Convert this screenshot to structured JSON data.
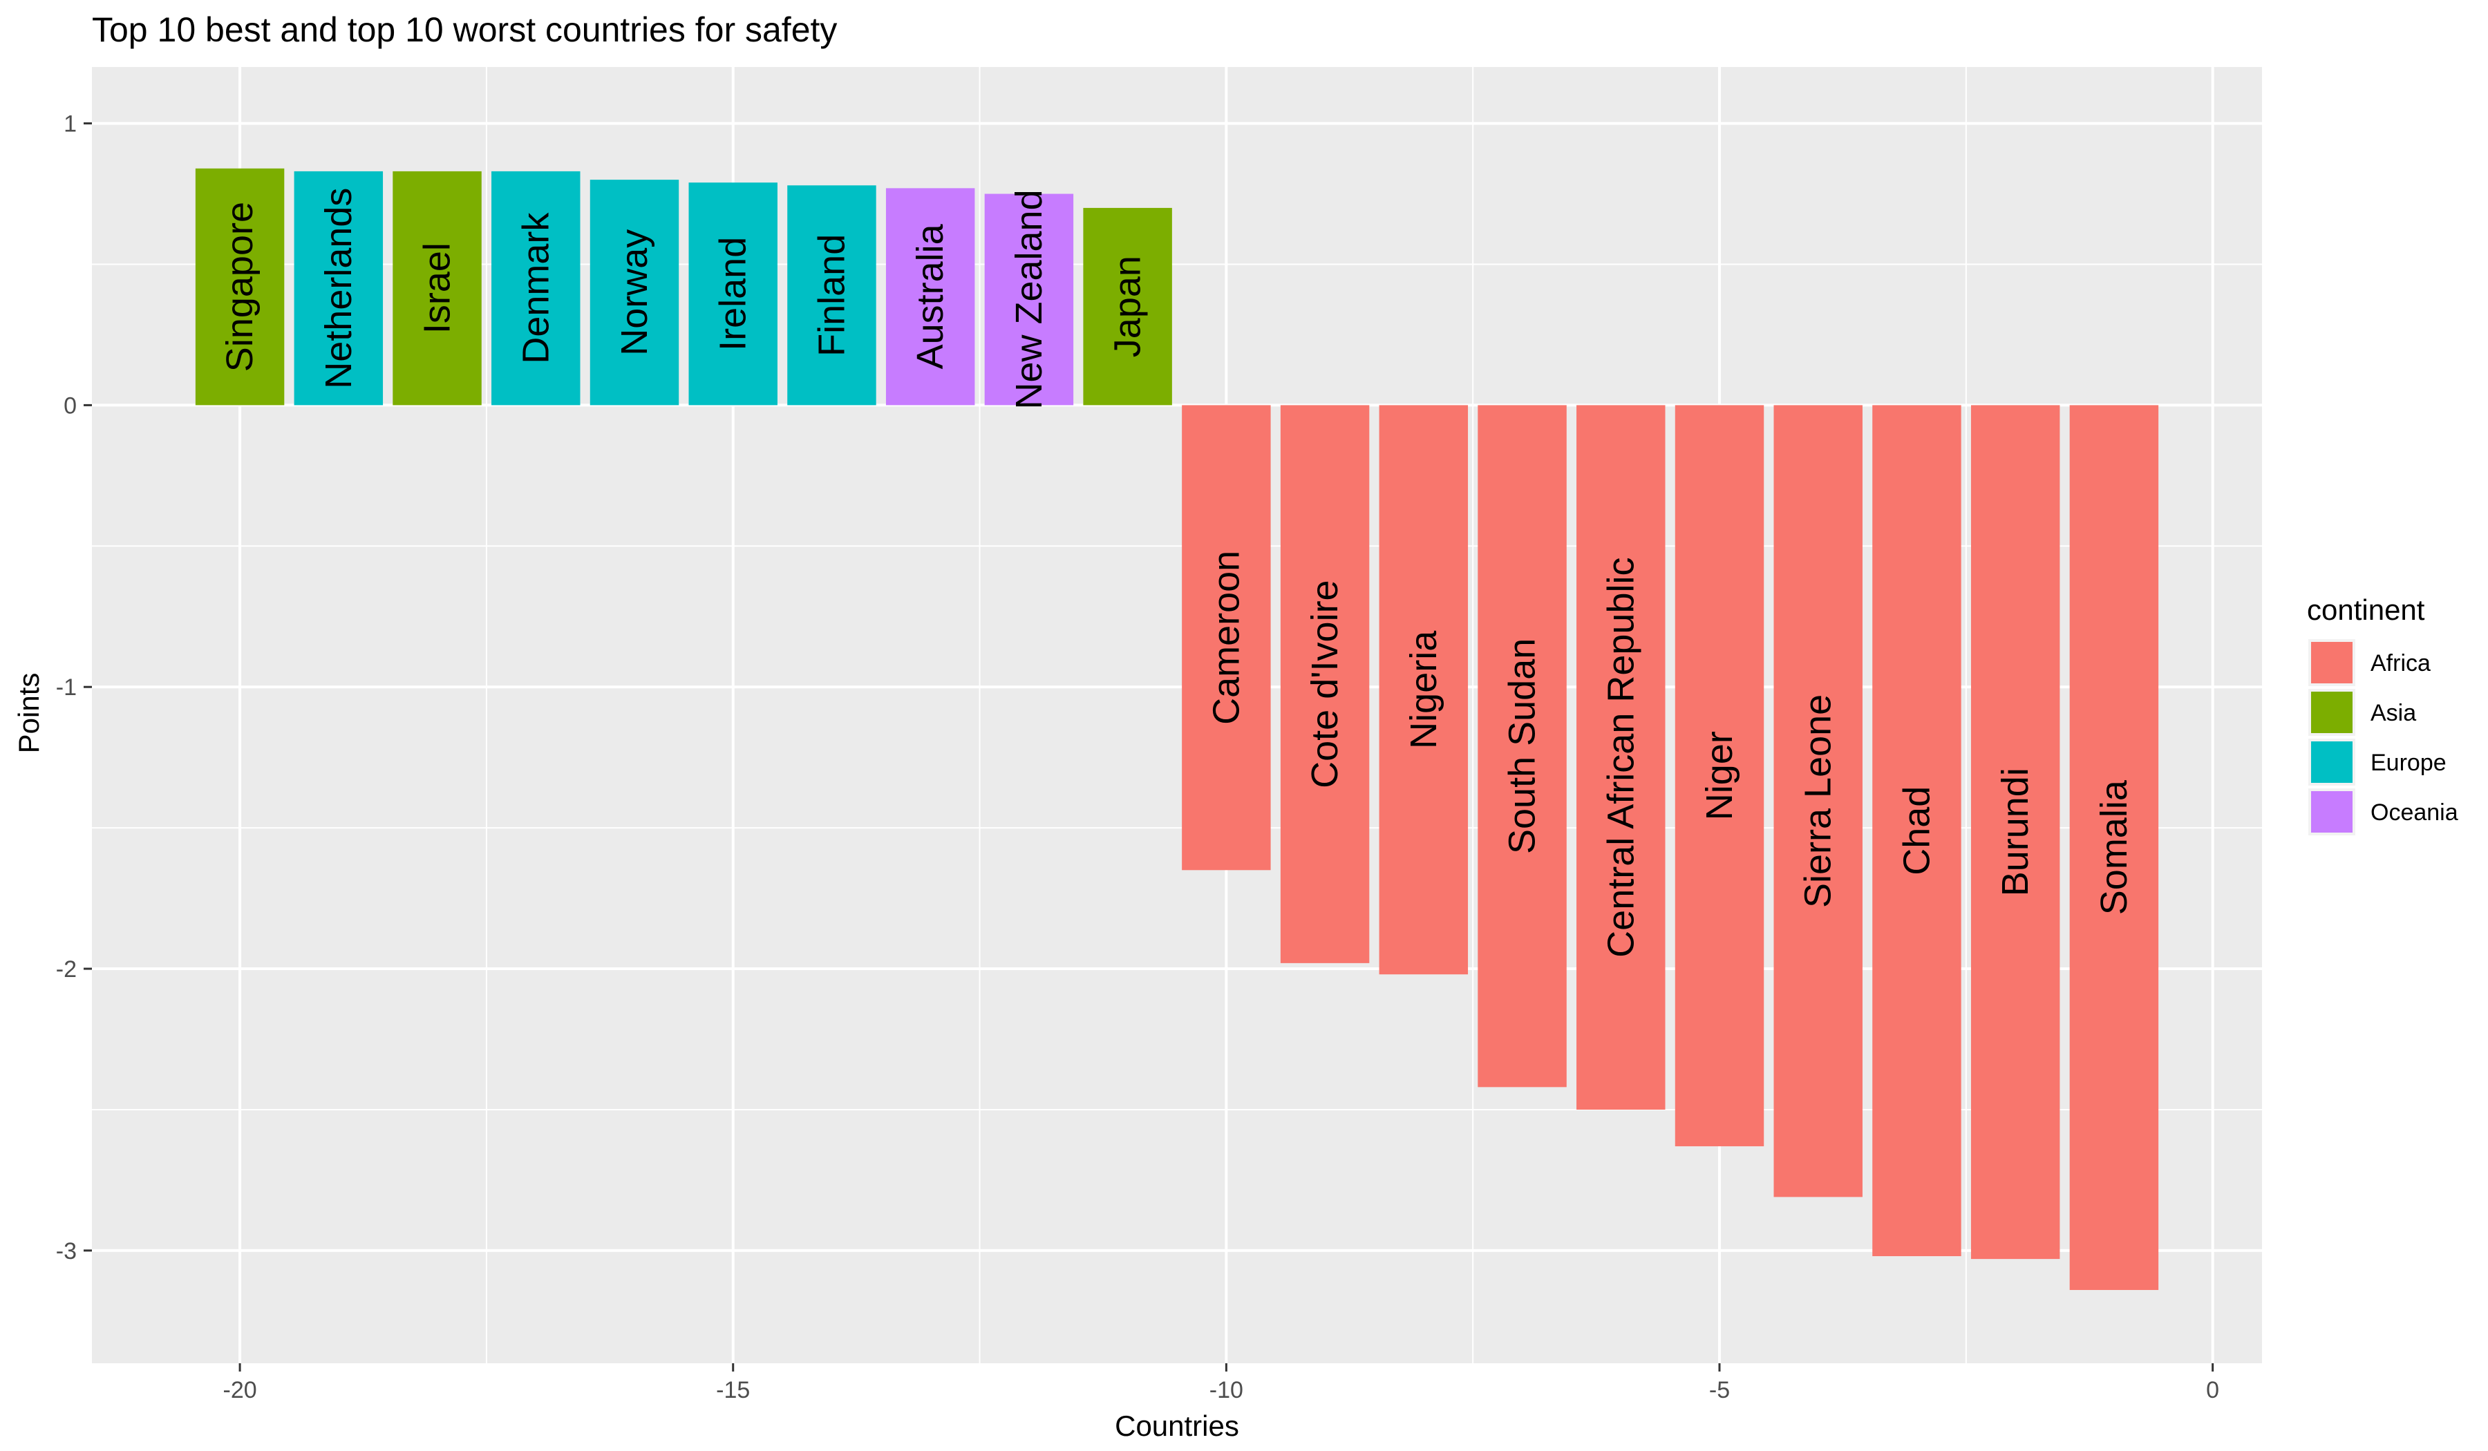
{
  "chart_data": {
    "type": "bar",
    "title": "Top 10 best and top 10 worst countries for safety",
    "xlabel": "Countries",
    "ylabel": "Points",
    "xlim": [
      -21.5,
      0.5
    ],
    "ylim": [
      -3.4,
      1.2
    ],
    "x_ticks": [
      "-20",
      "-15",
      "-10",
      "-5",
      "0"
    ],
    "y_ticks": [
      "1",
      "0",
      "-1",
      "-2",
      "-3"
    ],
    "grid": true,
    "legend": {
      "title": "continent",
      "position": "right",
      "entries": [
        {
          "name": "Africa",
          "color": "#F8766D"
        },
        {
          "name": "Asia",
          "color": "#7CAE00"
        },
        {
          "name": "Europe",
          "color": "#00BFC4"
        },
        {
          "name": "Oceania",
          "color": "#C77CFF"
        }
      ]
    },
    "bars": [
      {
        "x": -20,
        "label": "Singapore",
        "value": 0.84,
        "continent": "Asia"
      },
      {
        "x": -19,
        "label": "Netherlands",
        "value": 0.83,
        "continent": "Europe"
      },
      {
        "x": -18,
        "label": "Israel",
        "value": 0.83,
        "continent": "Asia"
      },
      {
        "x": -17,
        "label": "Denmark",
        "value": 0.83,
        "continent": "Europe"
      },
      {
        "x": -16,
        "label": "Norway",
        "value": 0.8,
        "continent": "Europe"
      },
      {
        "x": -15,
        "label": "Ireland",
        "value": 0.79,
        "continent": "Europe"
      },
      {
        "x": -14,
        "label": "Finland",
        "value": 0.78,
        "continent": "Europe"
      },
      {
        "x": -13,
        "label": "Australia",
        "value": 0.77,
        "continent": "Oceania"
      },
      {
        "x": -12,
        "label": "New Zealand",
        "value": 0.75,
        "continent": "Oceania"
      },
      {
        "x": -11,
        "label": "Japan",
        "value": 0.7,
        "continent": "Asia"
      },
      {
        "x": -10,
        "label": "Cameroon",
        "value": -1.65,
        "continent": "Africa"
      },
      {
        "x": -9,
        "label": "Cote d'Ivoire",
        "value": -1.98,
        "continent": "Africa"
      },
      {
        "x": -8,
        "label": "Nigeria",
        "value": -2.02,
        "continent": "Africa"
      },
      {
        "x": -7,
        "label": "South Sudan",
        "value": -2.42,
        "continent": "Africa"
      },
      {
        "x": -6,
        "label": "Central African Republic",
        "value": -2.5,
        "continent": "Africa"
      },
      {
        "x": -5,
        "label": "Niger",
        "value": -2.63,
        "continent": "Africa"
      },
      {
        "x": -4,
        "label": "Sierra Leone",
        "value": -2.81,
        "continent": "Africa"
      },
      {
        "x": -3,
        "label": "Chad",
        "value": -3.02,
        "continent": "Africa"
      },
      {
        "x": -2,
        "label": "Burundi",
        "value": -3.03,
        "continent": "Africa"
      },
      {
        "x": -1,
        "label": "Somalia",
        "value": -3.14,
        "continent": "Africa"
      }
    ]
  }
}
